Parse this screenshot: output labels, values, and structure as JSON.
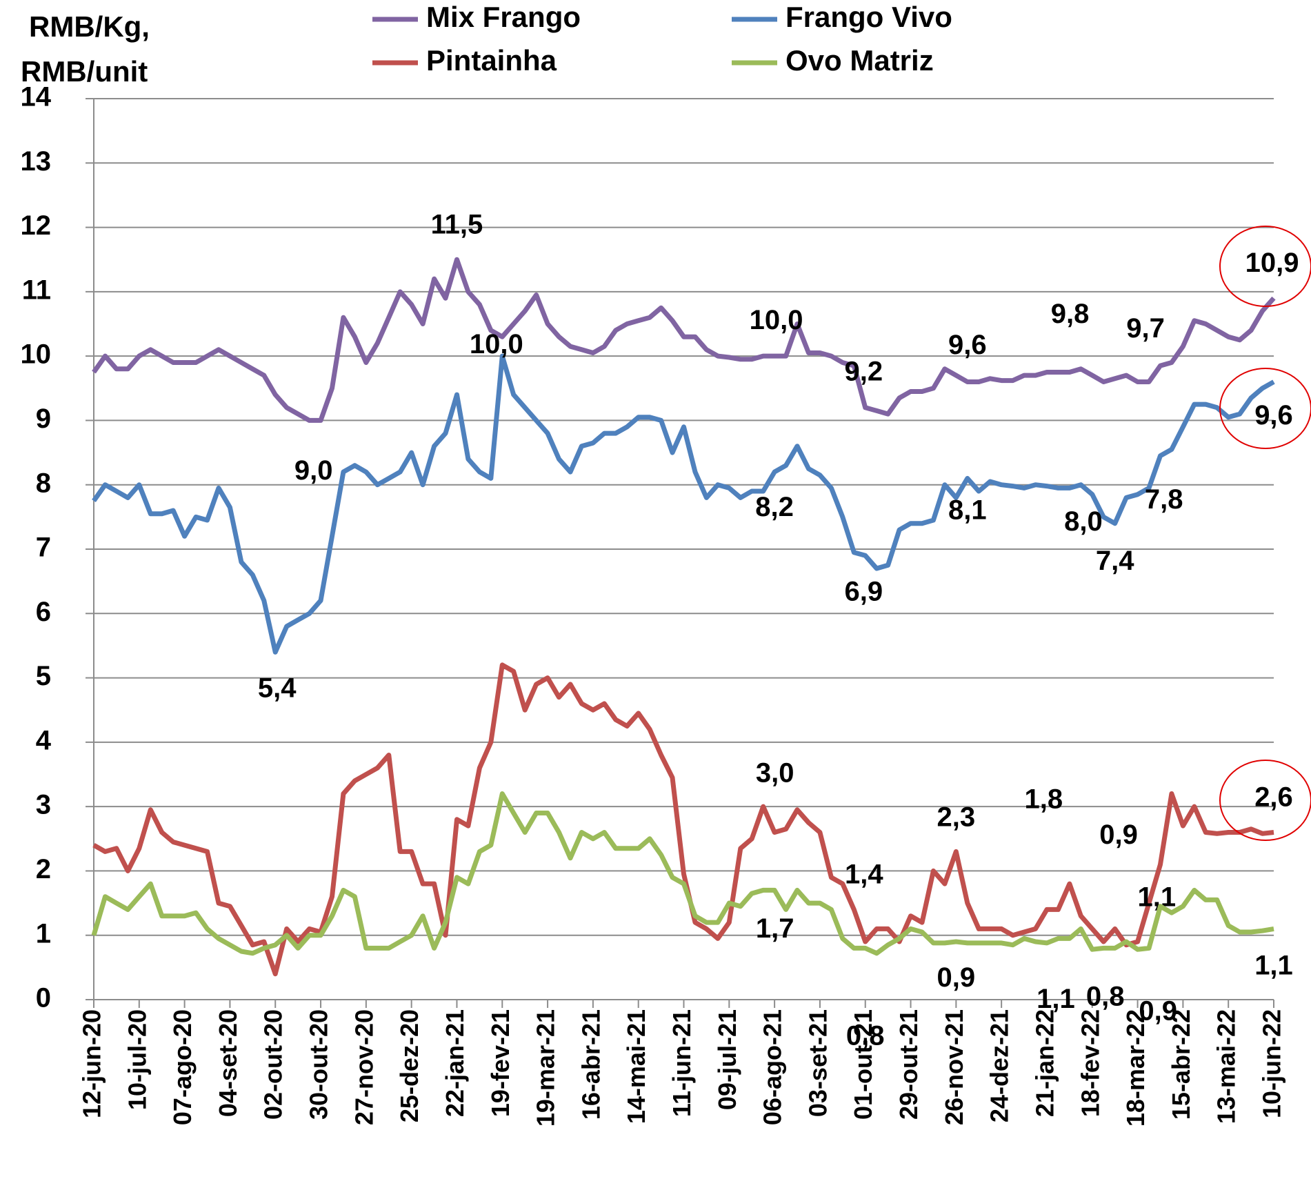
{
  "chart_data": {
    "type": "line",
    "y_label": [
      "RMB/Kg,",
      "RMB/unit"
    ],
    "ylim": [
      0,
      14
    ],
    "yticks": [
      0,
      1,
      2,
      3,
      4,
      5,
      6,
      7,
      8,
      9,
      10,
      11,
      12,
      13,
      14
    ],
    "grid": true,
    "categories": [
      "12-jun-20",
      null,
      null,
      null,
      "10-jul-20",
      null,
      null,
      null,
      "07-ago-20",
      null,
      null,
      null,
      "04-set-20",
      null,
      null,
      null,
      "02-out-20",
      null,
      null,
      null,
      "30-out-20",
      null,
      null,
      null,
      "27-nov-20",
      null,
      null,
      null,
      "25-dez-20",
      null,
      null,
      null,
      "22-jan-21",
      null,
      null,
      null,
      "19-fev-21",
      null,
      null,
      null,
      "19-mar-21",
      null,
      null,
      null,
      "16-abr-21",
      null,
      null,
      null,
      "14-mai-21",
      null,
      null,
      null,
      "11-jun-21",
      null,
      null,
      null,
      "09-jul-21",
      null,
      null,
      null,
      "06-ago-21",
      null,
      null,
      null,
      "03-set-21",
      null,
      null,
      null,
      "01-out-21",
      null,
      null,
      null,
      "29-out-21",
      null,
      null,
      null,
      "26-nov-21",
      null,
      null,
      null,
      "24-dez-21",
      null,
      null,
      null,
      "21-jan-22",
      null,
      null,
      null,
      "18-fev-22",
      null,
      null,
      null,
      "18-mar-22",
      null,
      null,
      null,
      "15-abr-22",
      null,
      null,
      null,
      "13-mai-22",
      null,
      null,
      null,
      "10-jun-22"
    ],
    "series": [
      {
        "name": "Mix Frango",
        "color": "#8064a2",
        "values": [
          9.75,
          10.0,
          9.8,
          9.8,
          10.0,
          10.1,
          10.0,
          9.9,
          9.9,
          9.9,
          10.0,
          10.1,
          10.0,
          9.9,
          9.8,
          9.7,
          9.4,
          9.2,
          9.1,
          9.0,
          9.0,
          9.5,
          10.6,
          10.3,
          9.9,
          10.2,
          10.6,
          11.0,
          10.8,
          10.5,
          11.2,
          10.9,
          11.5,
          11.0,
          10.8,
          10.4,
          10.3,
          10.5,
          10.7,
          10.95,
          10.5,
          10.3,
          10.15,
          10.1,
          10.05,
          10.15,
          10.4,
          10.5,
          10.55,
          10.6,
          10.75,
          10.55,
          10.3,
          10.3,
          10.1,
          10.0,
          9.98,
          9.95,
          9.95,
          10.0,
          10.0,
          10.0,
          10.5,
          10.05,
          10.05,
          10.0,
          9.9,
          9.85,
          9.2,
          9.15,
          9.1,
          9.35,
          9.45,
          9.45,
          9.5,
          9.8,
          9.7,
          9.6,
          9.6,
          9.65,
          9.62,
          9.62,
          9.7,
          9.7,
          9.75,
          9.75,
          9.75,
          9.8,
          9.7,
          9.6,
          9.65,
          9.7,
          9.6,
          9.6,
          9.85,
          9.9,
          10.15,
          10.55,
          10.5,
          10.4,
          10.3,
          10.25,
          10.4,
          10.7,
          10.9
        ],
        "value_labels": [
          null,
          null,
          null,
          null,
          null,
          null,
          null,
          null,
          null,
          null,
          null,
          null,
          null,
          null,
          null,
          null,
          null,
          null,
          null,
          "9,0",
          null,
          null,
          null,
          null,
          null,
          null,
          null,
          null,
          null,
          null,
          null,
          null,
          "11,5",
          null,
          null,
          null,
          null,
          null,
          null,
          null,
          null,
          null,
          null,
          null,
          null,
          null,
          null,
          null,
          null,
          null,
          null,
          null,
          null,
          null,
          null,
          null,
          null,
          null,
          null,
          null,
          "10,0",
          null,
          null,
          null,
          null,
          null,
          null,
          null,
          "9,2",
          null,
          null,
          null,
          null,
          null,
          null,
          null,
          null,
          "9,6",
          null,
          null,
          null,
          null,
          null,
          null,
          null,
          null,
          null,
          "9,8",
          null,
          null,
          null,
          "9,7",
          null,
          null,
          null,
          null,
          null,
          null,
          null,
          null,
          null,
          null,
          null,
          null,
          "10,9"
        ]
      },
      {
        "name": "Frango Vivo",
        "color": "#4f81bd",
        "values": [
          7.75,
          8.0,
          7.9,
          7.8,
          8.0,
          7.55,
          7.55,
          7.6,
          7.2,
          7.5,
          7.45,
          7.95,
          7.65,
          6.8,
          6.6,
          6.2,
          5.4,
          5.8,
          5.9,
          6.0,
          6.2,
          7.2,
          8.2,
          8.3,
          8.2,
          8.0,
          8.1,
          8.2,
          8.5,
          8.0,
          8.6,
          8.8,
          9.4,
          8.4,
          8.2,
          8.1,
          10.0,
          9.4,
          9.2,
          9.0,
          8.8,
          8.4,
          8.2,
          8.6,
          8.65,
          8.8,
          8.8,
          8.9,
          9.05,
          9.05,
          9.0,
          8.5,
          8.9,
          8.2,
          7.8,
          8.0,
          7.95,
          7.8,
          7.9,
          7.9,
          8.2,
          8.3,
          8.6,
          8.25,
          8.15,
          7.95,
          7.5,
          6.95,
          6.9,
          6.7,
          6.75,
          7.3,
          7.4,
          7.4,
          7.45,
          8.0,
          7.8,
          8.1,
          7.9,
          8.05,
          8.0,
          7.98,
          7.95,
          8.0,
          7.98,
          7.95,
          7.95,
          8.0,
          7.85,
          7.5,
          7.4,
          7.8,
          7.85,
          7.95,
          8.45,
          8.55,
          8.9,
          9.25,
          9.25,
          9.2,
          9.05,
          9.1,
          9.35,
          9.5,
          9.6
        ],
        "value_labels": [
          null,
          null,
          null,
          null,
          null,
          null,
          null,
          null,
          null,
          null,
          null,
          null,
          null,
          null,
          null,
          null,
          "5,4",
          null,
          null,
          null,
          null,
          null,
          null,
          null,
          null,
          null,
          null,
          null,
          null,
          null,
          null,
          null,
          null,
          null,
          null,
          null,
          "10,0",
          null,
          null,
          null,
          null,
          null,
          null,
          null,
          null,
          null,
          null,
          null,
          null,
          null,
          null,
          null,
          null,
          null,
          null,
          null,
          null,
          null,
          null,
          null,
          "8,2",
          null,
          null,
          null,
          null,
          null,
          null,
          null,
          "6,9",
          null,
          null,
          null,
          null,
          null,
          null,
          null,
          null,
          "8,1",
          null,
          null,
          null,
          null,
          null,
          null,
          null,
          null,
          null,
          "8,0",
          null,
          null,
          "7,4",
          "7,8",
          null,
          null,
          null,
          null,
          null,
          null,
          null,
          null,
          null,
          null,
          null,
          null,
          "9,6"
        ]
      },
      {
        "name": "Pintainha",
        "color": "#c0504d",
        "values": [
          2.4,
          2.3,
          2.35,
          2.0,
          2.35,
          2.95,
          2.6,
          2.45,
          2.4,
          2.35,
          2.3,
          1.5,
          1.45,
          1.15,
          0.85,
          0.9,
          0.4,
          1.1,
          0.9,
          1.1,
          1.05,
          1.6,
          3.2,
          3.4,
          3.5,
          3.6,
          3.8,
          2.3,
          2.3,
          1.8,
          1.8,
          1.0,
          2.8,
          2.7,
          3.6,
          4.0,
          5.2,
          5.1,
          4.5,
          4.9,
          5.0,
          4.7,
          4.9,
          4.6,
          4.5,
          4.6,
          4.35,
          4.25,
          4.45,
          4.2,
          3.8,
          3.45,
          1.95,
          1.2,
          1.1,
          0.95,
          1.2,
          2.35,
          2.5,
          3.0,
          2.6,
          2.65,
          2.95,
          2.75,
          2.6,
          1.9,
          1.8,
          1.4,
          0.9,
          1.1,
          1.1,
          0.9,
          1.3,
          1.2,
          2.0,
          1.8,
          2.3,
          1.5,
          1.1,
          1.1,
          1.1,
          1.0,
          1.05,
          1.1,
          1.4,
          1.4,
          1.8,
          1.3,
          1.1,
          0.9,
          1.1,
          0.85,
          0.9,
          1.5,
          2.1,
          3.2,
          2.7,
          3.0,
          2.6,
          2.58,
          2.6,
          2.6,
          2.65,
          2.58,
          2.6
        ],
        "value_labels": [
          null,
          null,
          null,
          null,
          null,
          null,
          null,
          null,
          null,
          null,
          null,
          null,
          null,
          null,
          null,
          null,
          null,
          null,
          null,
          null,
          null,
          null,
          null,
          null,
          null,
          null,
          null,
          null,
          null,
          null,
          null,
          null,
          null,
          null,
          null,
          null,
          null,
          null,
          null,
          null,
          null,
          null,
          null,
          null,
          null,
          null,
          null,
          null,
          null,
          null,
          null,
          null,
          null,
          null,
          null,
          null,
          null,
          null,
          null,
          "3,0",
          null,
          null,
          null,
          null,
          null,
          null,
          null,
          "1,4",
          null,
          null,
          null,
          null,
          null,
          null,
          null,
          null,
          "2,3",
          null,
          null,
          null,
          null,
          null,
          null,
          null,
          null,
          null,
          "1,8",
          null,
          null,
          "0,9",
          "1,1",
          null,
          null,
          null,
          null,
          null,
          null,
          null,
          null,
          null,
          null,
          null,
          null,
          null,
          "2,6"
        ]
      },
      {
        "name": "Ovo Matriz",
        "color": "#9bbb59",
        "values": [
          1.0,
          1.6,
          1.5,
          1.4,
          1.6,
          1.8,
          1.3,
          1.3,
          1.3,
          1.35,
          1.1,
          0.95,
          0.85,
          0.75,
          0.72,
          0.8,
          0.85,
          1.0,
          0.8,
          1.0,
          1.0,
          1.3,
          1.7,
          1.6,
          0.8,
          0.8,
          0.8,
          0.9,
          1.0,
          1.3,
          0.8,
          1.2,
          1.9,
          1.8,
          2.3,
          2.4,
          3.2,
          2.9,
          2.6,
          2.9,
          2.9,
          2.6,
          2.2,
          2.6,
          2.5,
          2.6,
          2.35,
          2.35,
          2.35,
          2.5,
          2.25,
          1.9,
          1.8,
          1.3,
          1.2,
          1.2,
          1.5,
          1.45,
          1.65,
          1.7,
          1.7,
          1.4,
          1.7,
          1.5,
          1.5,
          1.4,
          0.95,
          0.8,
          0.8,
          0.72,
          0.85,
          0.95,
          1.1,
          1.05,
          0.88,
          0.88,
          0.9,
          0.88,
          0.88,
          0.88,
          0.88,
          0.85,
          0.95,
          0.9,
          0.88,
          0.95,
          0.95,
          1.1,
          0.78,
          0.8,
          0.8,
          0.9,
          0.78,
          0.8,
          1.45,
          1.35,
          1.45,
          1.7,
          1.55,
          1.55,
          1.15,
          1.05,
          1.05,
          1.07,
          1.1
        ],
        "value_labels": [
          null,
          null,
          null,
          null,
          null,
          null,
          null,
          null,
          null,
          null,
          null,
          null,
          null,
          null,
          null,
          null,
          null,
          null,
          null,
          null,
          null,
          null,
          null,
          null,
          null,
          null,
          null,
          null,
          null,
          null,
          null,
          null,
          null,
          null,
          null,
          null,
          null,
          null,
          null,
          null,
          null,
          null,
          null,
          null,
          null,
          null,
          null,
          null,
          null,
          null,
          null,
          null,
          null,
          null,
          null,
          null,
          null,
          null,
          null,
          "1,7",
          null,
          null,
          null,
          null,
          null,
          null,
          null,
          null,
          "0,8",
          null,
          null,
          null,
          null,
          null,
          null,
          null,
          "0,9",
          null,
          null,
          null,
          null,
          null,
          null,
          null,
          null,
          null,
          null,
          "1,1",
          null,
          "0,8",
          null,
          "0,9",
          null,
          null,
          null,
          null,
          null,
          null,
          null,
          null,
          null,
          null,
          null,
          null,
          "1,1"
        ]
      }
    ]
  }
}
